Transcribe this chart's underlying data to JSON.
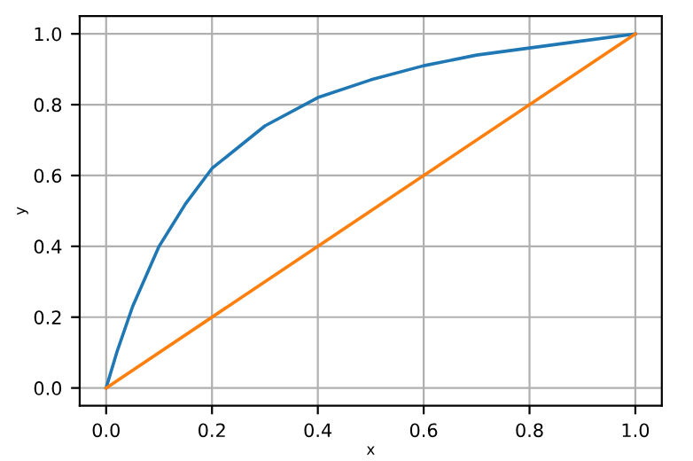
{
  "chart_data": {
    "type": "line",
    "xlabel": "x",
    "ylabel": "y",
    "series": [
      {
        "color": "#1f77b4",
        "x": [
          0,
          0.02,
          0.05,
          0.1,
          0.15,
          0.2,
          0.3,
          0.4,
          0.5,
          0.6,
          0.7,
          0.8,
          0.9,
          1.0
        ],
        "values": [
          0,
          0.1,
          0.23,
          0.4,
          0.52,
          0.62,
          0.74,
          0.82,
          0.87,
          0.91,
          0.94,
          0.96,
          0.98,
          1.0
        ]
      },
      {
        "color": "#ff7f0e",
        "x": [
          0,
          1.0
        ],
        "values": [
          0,
          1.0
        ]
      }
    ],
    "xlim": [
      -0.05,
      1.05
    ],
    "ylim": [
      -0.05,
      1.05
    ],
    "xticks": [
      {
        "value": 0,
        "label": "0.0"
      },
      0.2,
      0.4,
      0.6,
      0.8,
      {
        "value": 1,
        "label": "1.0"
      }
    ],
    "yticks": [
      {
        "value": 0,
        "label": "0.0"
      },
      0.2,
      0.4,
      0.6,
      0.8,
      {
        "value": 1,
        "label": "1.0"
      }
    ],
    "grid": true
  }
}
